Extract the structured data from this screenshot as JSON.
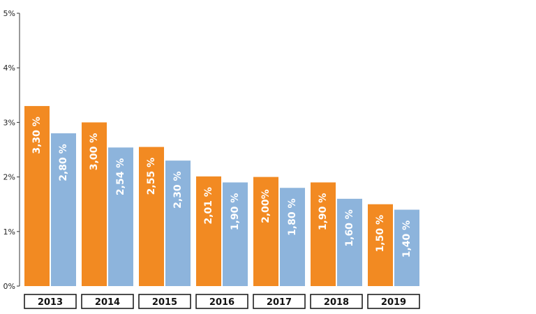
{
  "chart_data": {
    "type": "bar",
    "categories": [
      "2013",
      "2014",
      "2015",
      "2016",
      "2017",
      "2018",
      "2019"
    ],
    "series": [
      {
        "values": [
          3.3,
          3.0,
          2.55,
          2.01,
          2.0,
          1.9,
          1.5
        ],
        "labels": [
          "3,30 %",
          "3,00 %",
          "2,55 %",
          "2,01 %",
          "2,00%",
          "1,90 %",
          "1,50 %"
        ],
        "color": "#F28A22"
      },
      {
        "values": [
          2.8,
          2.54,
          2.3,
          1.9,
          1.8,
          1.6,
          1.4
        ],
        "labels": [
          "2,80 %",
          "2,54 %",
          "2,30 %",
          "1,90 %",
          "1,80 %",
          "1,60 %",
          "1,40 %"
        ],
        "color": "#8DB4DC"
      }
    ],
    "yticks": [
      "0%",
      "1%",
      "2%",
      "3%",
      "4%",
      "5%"
    ],
    "ylim": [
      0,
      5
    ],
    "title": "",
    "xlabel": "",
    "ylabel": "",
    "grid": false,
    "legend": "none"
  }
}
